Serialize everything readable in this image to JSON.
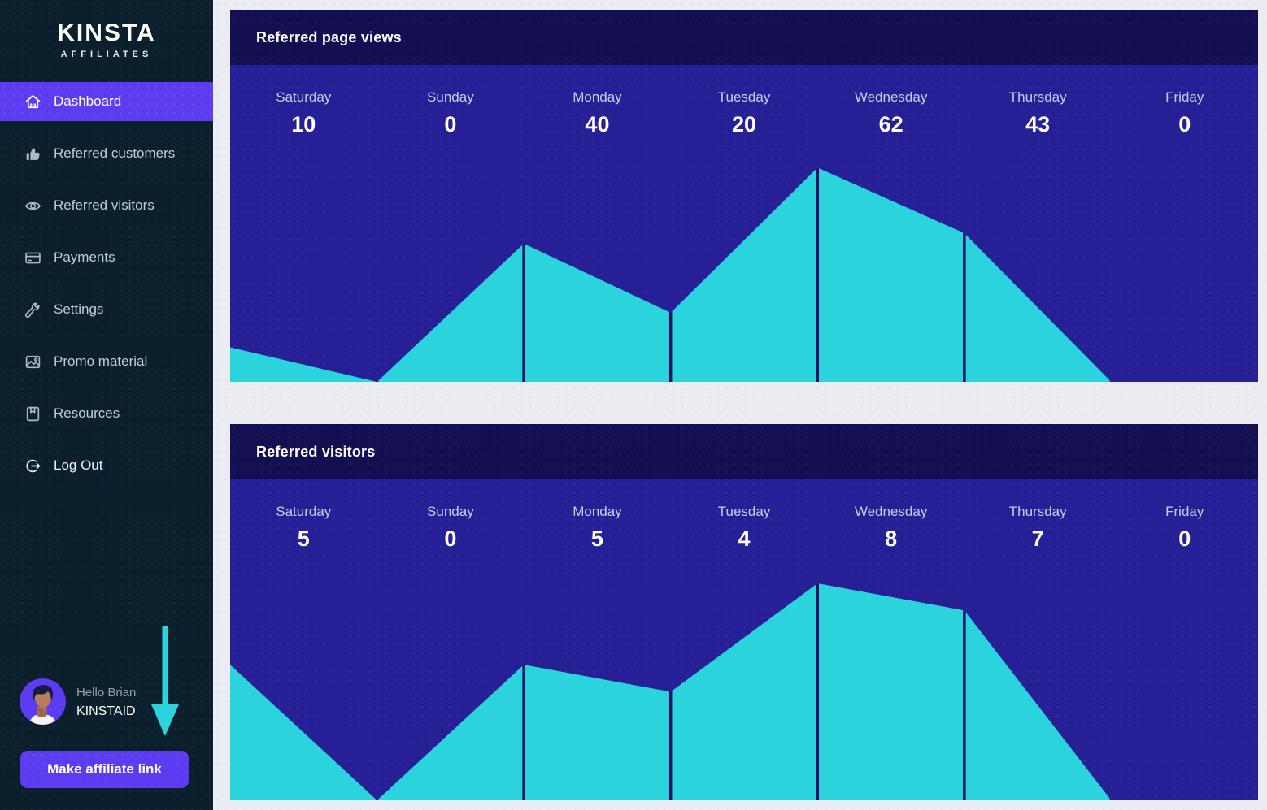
{
  "sidebar": {
    "logo": {
      "brand": "KINSTA",
      "sub": "AFFILIATES"
    },
    "items": [
      {
        "label": "Dashboard",
        "icon": "home-icon",
        "active": true
      },
      {
        "label": "Referred customers",
        "icon": "thumbs-up-icon",
        "active": false
      },
      {
        "label": "Referred visitors",
        "icon": "eye-icon",
        "active": false
      },
      {
        "label": "Payments",
        "icon": "credit-card-icon",
        "active": false
      },
      {
        "label": "Settings",
        "icon": "wrench-icon",
        "active": false
      },
      {
        "label": "Promo material",
        "icon": "image-icon",
        "active": false
      },
      {
        "label": "Resources",
        "icon": "book-icon",
        "active": false
      },
      {
        "label": "Log Out",
        "icon": "logout-icon",
        "active": false
      }
    ],
    "user": {
      "greeting": "Hello Brian",
      "account_id": "KINSTAID"
    },
    "cta_label": "Make affiliate link"
  },
  "chart_data": [
    {
      "type": "area",
      "title": "Referred page views",
      "categories": [
        "Saturday",
        "Sunday",
        "Monday",
        "Tuesday",
        "Wednesday",
        "Thursday",
        "Friday"
      ],
      "values": [
        10,
        0,
        40,
        20,
        62,
        43,
        0
      ],
      "ylim": [
        0,
        62
      ],
      "grid": false,
      "area_color": "#2bd3dd",
      "background": "#261f96",
      "divider_color": "#1a1566"
    },
    {
      "type": "area",
      "title": "Referred visitors",
      "categories": [
        "Saturday",
        "Sunday",
        "Monday",
        "Tuesday",
        "Wednesday",
        "Thursday",
        "Friday"
      ],
      "values": [
        5,
        0,
        5,
        4,
        8,
        7,
        0
      ],
      "ylim": [
        0,
        8
      ],
      "grid": false,
      "area_color": "#2bd3dd",
      "background": "#261f96",
      "divider_color": "#1a1566"
    }
  ],
  "colors": {
    "accent_purple": "#5b3cf1",
    "cyan": "#2bd3dd",
    "sidebar_bg": "#0c1f2d",
    "card_header_bg": "#130f50",
    "card_body_bg": "#261f96",
    "page_bg": "#ecedf2"
  }
}
